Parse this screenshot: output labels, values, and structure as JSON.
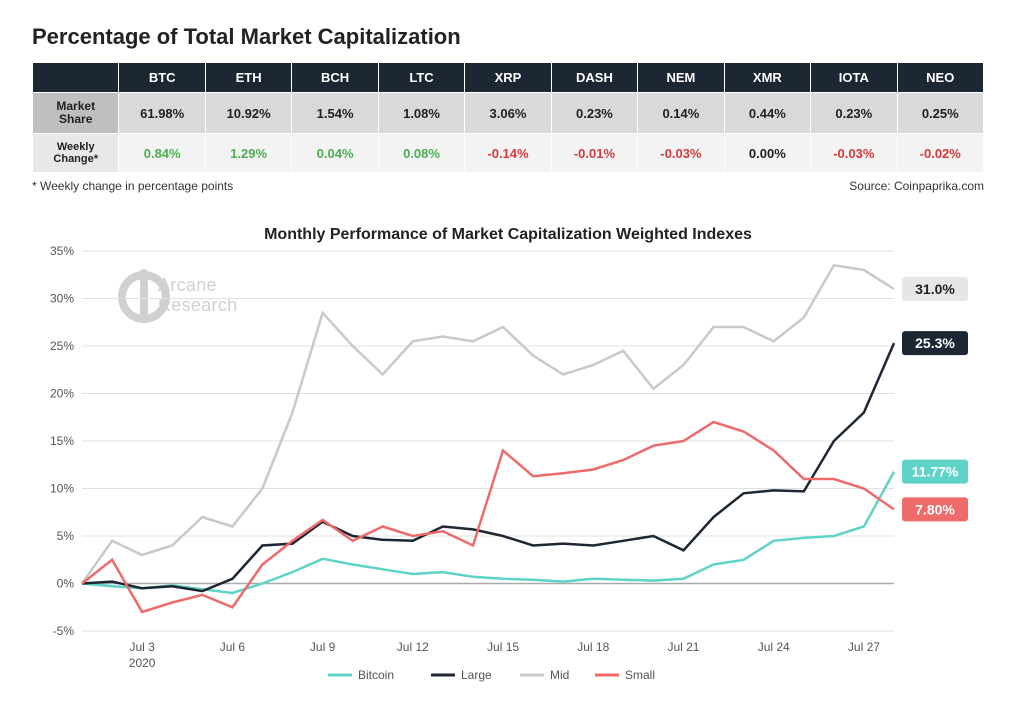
{
  "title": "Percentage of Total Market Capitalization",
  "table": {
    "corner": "",
    "headers": [
      "BTC",
      "ETH",
      "BCH",
      "LTC",
      "XRP",
      "DASH",
      "NEM",
      "XMR",
      "IOTA",
      "NEO"
    ],
    "rows": [
      {
        "label": "Market Share",
        "cells": [
          {
            "text": "61.98%",
            "cls": "neutral"
          },
          {
            "text": "10.92%",
            "cls": "neutral"
          },
          {
            "text": "1.54%",
            "cls": "neutral"
          },
          {
            "text": "1.08%",
            "cls": "neutral"
          },
          {
            "text": "3.06%",
            "cls": "neutral"
          },
          {
            "text": "0.23%",
            "cls": "neutral"
          },
          {
            "text": "0.14%",
            "cls": "neutral"
          },
          {
            "text": "0.44%",
            "cls": "neutral"
          },
          {
            "text": "0.23%",
            "cls": "neutral"
          },
          {
            "text": "0.25%",
            "cls": "neutral"
          }
        ]
      },
      {
        "label": "Weekly Change*",
        "cells": [
          {
            "text": "0.84%",
            "cls": "pos"
          },
          {
            "text": "1.29%",
            "cls": "pos"
          },
          {
            "text": "0.04%",
            "cls": "pos"
          },
          {
            "text": "0.08%",
            "cls": "pos"
          },
          {
            "text": "-0.14%",
            "cls": "neg"
          },
          {
            "text": "-0.01%",
            "cls": "neg"
          },
          {
            "text": "-0.03%",
            "cls": "neg"
          },
          {
            "text": "0.00%",
            "cls": "neutral"
          },
          {
            "text": "-0.03%",
            "cls": "neg"
          },
          {
            "text": "-0.02%",
            "cls": "neg"
          }
        ]
      }
    ],
    "footnote": "* Weekly change in percentage points",
    "source": "Source: Coinpaprika.com"
  },
  "chart": {
    "type": "line",
    "title": "Monthly Performance of Market Capitalization Weighted Indexes",
    "title_fontsize": 16,
    "watermark": "Arcane\nResearch",
    "watermark_color": "#d0d0d0",
    "colors": {
      "bitcoin": "#5fd3c8",
      "large": "#1d2633",
      "mid": "#c9c9c9",
      "small": "#ef6a6a",
      "grid": "#e0e0e0",
      "background": "#ffffff",
      "axis_text": "#555555"
    },
    "ylim": [
      -5,
      35
    ],
    "ytick_step": 5,
    "yticks": [
      -5,
      0,
      5,
      10,
      15,
      20,
      25,
      30,
      35
    ],
    "xticks": [
      "Jul 3",
      "Jul 6",
      "Jul 9",
      "Jul 12",
      "Jul 15",
      "Jul 18",
      "Jul 21",
      "Jul 24",
      "Jul 27"
    ],
    "x_range": [
      1,
      28
    ],
    "year_label": "2020",
    "label_fontsize": 12,
    "line_width": 2.5,
    "series": [
      {
        "key": "bitcoin",
        "label": "Bitcoin",
        "color_ref": "bitcoin",
        "end_label": "11.77%",
        "end_bg": "#5fd3c8",
        "end_fg": "#ffffff",
        "end_y": 11.77,
        "points": [
          [
            1,
            0
          ],
          [
            2,
            -0.3
          ],
          [
            3,
            -0.5
          ],
          [
            4,
            -0.2
          ],
          [
            5,
            -0.6
          ],
          [
            6,
            -1.0
          ],
          [
            7,
            0.0
          ],
          [
            8,
            1.2
          ],
          [
            9,
            2.6
          ],
          [
            10,
            2.0
          ],
          [
            11,
            1.5
          ],
          [
            12,
            1.0
          ],
          [
            13,
            1.2
          ],
          [
            14,
            0.7
          ],
          [
            15,
            0.5
          ],
          [
            16,
            0.4
          ],
          [
            17,
            0.2
          ],
          [
            18,
            0.5
          ],
          [
            19,
            0.4
          ],
          [
            20,
            0.3
          ],
          [
            21,
            0.5
          ],
          [
            22,
            2.0
          ],
          [
            23,
            2.5
          ],
          [
            24,
            4.5
          ],
          [
            25,
            4.8
          ],
          [
            26,
            5.0
          ],
          [
            27,
            6.0
          ],
          [
            28,
            11.77
          ]
        ]
      },
      {
        "key": "large",
        "label": "Large",
        "color_ref": "large",
        "end_label": "25.3%",
        "end_bg": "#1d2633",
        "end_fg": "#ffffff",
        "end_y": 25.3,
        "points": [
          [
            1,
            0
          ],
          [
            2,
            0.2
          ],
          [
            3,
            -0.5
          ],
          [
            4,
            -0.3
          ],
          [
            5,
            -0.8
          ],
          [
            6,
            0.5
          ],
          [
            7,
            4.0
          ],
          [
            8,
            4.2
          ],
          [
            9,
            6.5
          ],
          [
            10,
            5.0
          ],
          [
            11,
            4.6
          ],
          [
            12,
            4.5
          ],
          [
            13,
            6.0
          ],
          [
            14,
            5.7
          ],
          [
            15,
            5.0
          ],
          [
            16,
            4.0
          ],
          [
            17,
            4.2
          ],
          [
            18,
            4.0
          ],
          [
            19,
            4.5
          ],
          [
            20,
            5.0
          ],
          [
            21,
            3.5
          ],
          [
            22,
            7.0
          ],
          [
            23,
            9.5
          ],
          [
            24,
            9.8
          ],
          [
            25,
            9.7
          ],
          [
            26,
            15.0
          ],
          [
            27,
            18.0
          ],
          [
            28,
            25.3
          ]
        ]
      },
      {
        "key": "mid",
        "label": "Mid",
        "color_ref": "mid",
        "end_label": "31.0%",
        "end_bg": "#e6e6e6",
        "end_fg": "#222222",
        "end_y": 31.0,
        "points": [
          [
            1,
            0
          ],
          [
            2,
            4.5
          ],
          [
            3,
            3.0
          ],
          [
            4,
            4.0
          ],
          [
            5,
            7.0
          ],
          [
            6,
            6.0
          ],
          [
            7,
            10.0
          ],
          [
            8,
            18.0
          ],
          [
            9,
            28.5
          ],
          [
            10,
            25.0
          ],
          [
            11,
            22.0
          ],
          [
            12,
            25.5
          ],
          [
            13,
            26.0
          ],
          [
            14,
            25.5
          ],
          [
            15,
            27.0
          ],
          [
            16,
            24.0
          ],
          [
            17,
            22.0
          ],
          [
            18,
            23.0
          ],
          [
            19,
            24.5
          ],
          [
            20,
            20.5
          ],
          [
            21,
            23.0
          ],
          [
            22,
            27.0
          ],
          [
            23,
            27.0
          ],
          [
            24,
            25.5
          ],
          [
            25,
            28.0
          ],
          [
            26,
            33.5
          ],
          [
            27,
            33.0
          ],
          [
            28,
            31.0
          ]
        ]
      },
      {
        "key": "small",
        "label": "Small",
        "color_ref": "small",
        "end_label": "7.80%",
        "end_bg": "#ef6a6a",
        "end_fg": "#ffffff",
        "end_y": 7.8,
        "points": [
          [
            1,
            0
          ],
          [
            2,
            2.5
          ],
          [
            3,
            -3.0
          ],
          [
            4,
            -2.0
          ],
          [
            5,
            -1.2
          ],
          [
            6,
            -2.5
          ],
          [
            7,
            2.0
          ],
          [
            8,
            4.5
          ],
          [
            9,
            6.7
          ],
          [
            10,
            4.5
          ],
          [
            11,
            6.0
          ],
          [
            12,
            5.0
          ],
          [
            13,
            5.5
          ],
          [
            14,
            4.0
          ],
          [
            15,
            14.0
          ],
          [
            16,
            11.3
          ],
          [
            17,
            11.6
          ],
          [
            18,
            12.0
          ],
          [
            19,
            13.0
          ],
          [
            20,
            14.5
          ],
          [
            21,
            15.0
          ],
          [
            22,
            17.0
          ],
          [
            23,
            16.0
          ],
          [
            24,
            14.0
          ],
          [
            25,
            11.0
          ],
          [
            26,
            11.0
          ],
          [
            27,
            10.0
          ],
          [
            28,
            7.8
          ]
        ]
      }
    ],
    "legend": [
      {
        "label": "Bitcoin",
        "color_ref": "bitcoin"
      },
      {
        "label": "Large",
        "color_ref": "large"
      },
      {
        "label": "Mid",
        "color_ref": "mid"
      },
      {
        "label": "Small",
        "color_ref": "small"
      }
    ]
  }
}
